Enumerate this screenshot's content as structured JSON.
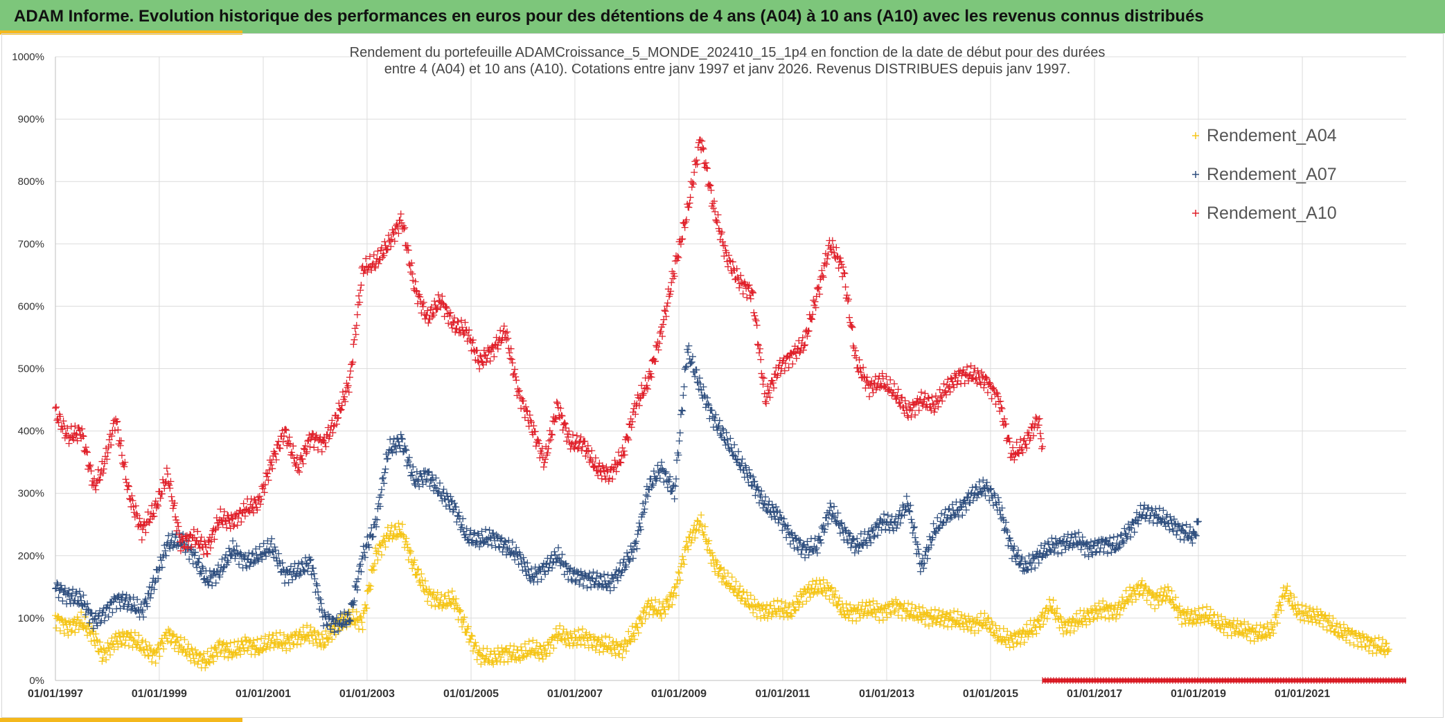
{
  "header": {
    "title": "ADAM Informe. Evolution historique des performances en euros pour des détentions de 4 ans (A04) à 10 ans (A10) avec les revenus connus distribués"
  },
  "colors": {
    "header_bg": "#7dc67b",
    "accent": "#f4b81c",
    "A04": "#f5c518",
    "A07": "#2f4f7f",
    "A10": "#e0202a"
  },
  "chart_data": {
    "type": "scatter",
    "title_lines": [
      "Rendement du portefeuille ADAMCroissance_5_MONDE_202410_15_1p4  en fonction de la date de début pour des durées",
      "entre 4 (A04) et 10 ans (A10). Cotations entre janv 1997 et janv 2026. Revenus DISTRIBUES depuis janv 1997."
    ],
    "x_axis": {
      "type": "date",
      "min": "1997-01-01",
      "max": "2023-01-01"
    },
    "x_ticks": [
      "01/01/1997",
      "01/01/1999",
      "01/01/2001",
      "01/01/2003",
      "01/01/2005",
      "01/01/2007",
      "01/01/2009",
      "01/01/2011",
      "01/01/2013",
      "01/01/2015",
      "01/01/2017",
      "01/01/2019",
      "01/01/2021"
    ],
    "y_axis": {
      "min": 0,
      "max": 1000,
      "unit": "%"
    },
    "y_ticks": [
      "0%",
      "100%",
      "200%",
      "300%",
      "400%",
      "500%",
      "600%",
      "700%",
      "800%",
      "900%",
      "1000%"
    ],
    "grid": true,
    "legend_position": "top-right",
    "marker": "+",
    "series": [
      {
        "name": "Rendement_A04",
        "color": "#f5c518",
        "points": [
          [
            "1997-01-01",
            100
          ],
          [
            "1997-04-01",
            85
          ],
          [
            "1997-07-01",
            95
          ],
          [
            "1997-10-01",
            70
          ],
          [
            "1997-12-01",
            40
          ],
          [
            "1998-03-01",
            65
          ],
          [
            "1998-06-01",
            70
          ],
          [
            "1998-09-01",
            55
          ],
          [
            "1998-12-01",
            40
          ],
          [
            "1999-03-01",
            75
          ],
          [
            "1999-06-01",
            55
          ],
          [
            "1999-09-01",
            40
          ],
          [
            "1999-12-01",
            30
          ],
          [
            "2000-03-01",
            55
          ],
          [
            "2000-06-01",
            45
          ],
          [
            "2000-09-01",
            60
          ],
          [
            "2000-12-01",
            50
          ],
          [
            "2001-03-01",
            65
          ],
          [
            "2001-06-01",
            60
          ],
          [
            "2001-09-01",
            70
          ],
          [
            "2001-12-01",
            75
          ],
          [
            "2002-03-01",
            60
          ],
          [
            "2002-06-01",
            90
          ],
          [
            "2002-09-01",
            100
          ],
          [
            "2002-12-01",
            95
          ],
          [
            "2003-03-01",
            200
          ],
          [
            "2003-06-01",
            235
          ],
          [
            "2003-09-01",
            240
          ],
          [
            "2003-12-01",
            180
          ],
          [
            "2004-03-01",
            140
          ],
          [
            "2004-06-01",
            125
          ],
          [
            "2004-09-01",
            130
          ],
          [
            "2004-12-01",
            80
          ],
          [
            "2005-03-01",
            40
          ],
          [
            "2005-06-01",
            35
          ],
          [
            "2005-09-01",
            45
          ],
          [
            "2005-12-01",
            40
          ],
          [
            "2006-03-01",
            50
          ],
          [
            "2006-06-01",
            45
          ],
          [
            "2006-09-01",
            75
          ],
          [
            "2006-12-01",
            65
          ],
          [
            "2007-03-01",
            70
          ],
          [
            "2007-06-01",
            60
          ],
          [
            "2007-09-01",
            55
          ],
          [
            "2007-12-01",
            50
          ],
          [
            "2008-03-01",
            80
          ],
          [
            "2008-06-01",
            120
          ],
          [
            "2008-09-01",
            110
          ],
          [
            "2008-12-01",
            140
          ],
          [
            "2009-03-01",
            220
          ],
          [
            "2009-06-01",
            255
          ],
          [
            "2009-09-01",
            190
          ],
          [
            "2009-12-01",
            160
          ],
          [
            "2010-03-01",
            140
          ],
          [
            "2010-06-01",
            120
          ],
          [
            "2010-09-01",
            110
          ],
          [
            "2010-12-01",
            115
          ],
          [
            "2011-03-01",
            110
          ],
          [
            "2011-06-01",
            140
          ],
          [
            "2011-09-01",
            150
          ],
          [
            "2011-12-01",
            145
          ],
          [
            "2012-03-01",
            110
          ],
          [
            "2012-06-01",
            110
          ],
          [
            "2012-09-01",
            115
          ],
          [
            "2012-12-01",
            110
          ],
          [
            "2013-03-01",
            120
          ],
          [
            "2013-06-01",
            110
          ],
          [
            "2013-09-01",
            105
          ],
          [
            "2013-12-01",
            100
          ],
          [
            "2014-03-01",
            100
          ],
          [
            "2014-06-01",
            95
          ],
          [
            "2014-09-01",
            90
          ],
          [
            "2014-12-01",
            95
          ],
          [
            "2015-03-01",
            70
          ],
          [
            "2015-06-01",
            65
          ],
          [
            "2015-09-01",
            75
          ],
          [
            "2015-12-01",
            90
          ],
          [
            "2016-03-01",
            120
          ],
          [
            "2016-06-01",
            85
          ],
          [
            "2016-09-01",
            95
          ],
          [
            "2016-12-01",
            105
          ],
          [
            "2017-03-01",
            115
          ],
          [
            "2017-06-01",
            110
          ],
          [
            "2017-09-01",
            135
          ],
          [
            "2017-12-01",
            150
          ],
          [
            "2018-03-01",
            130
          ],
          [
            "2018-06-01",
            140
          ],
          [
            "2018-09-01",
            105
          ],
          [
            "2018-12-01",
            100
          ],
          [
            "2019-03-01",
            105
          ],
          [
            "2019-06-01",
            90
          ],
          [
            "2019-09-01",
            85
          ],
          [
            "2019-12-01",
            80
          ],
          [
            "2020-03-01",
            75
          ],
          [
            "2020-06-01",
            80
          ],
          [
            "2020-09-01",
            145
          ],
          [
            "2020-12-01",
            110
          ],
          [
            "2021-03-01",
            105
          ],
          [
            "2021-06-01",
            100
          ],
          [
            "2021-09-01",
            80
          ],
          [
            "2021-12-01",
            75
          ],
          [
            "2022-03-01",
            65
          ],
          [
            "2022-06-01",
            55
          ],
          [
            "2022-09-01",
            50
          ]
        ]
      },
      {
        "name": "Rendement_A07",
        "color": "#2f4f7f",
        "points": [
          [
            "1997-01-01",
            150
          ],
          [
            "1997-04-01",
            135
          ],
          [
            "1997-07-01",
            130
          ],
          [
            "1997-10-01",
            95
          ],
          [
            "1997-12-01",
            105
          ],
          [
            "1998-03-01",
            130
          ],
          [
            "1998-06-01",
            125
          ],
          [
            "1998-09-01",
            110
          ],
          [
            "1998-12-01",
            160
          ],
          [
            "1999-03-01",
            220
          ],
          [
            "1999-06-01",
            225
          ],
          [
            "1999-09-01",
            200
          ],
          [
            "1999-12-01",
            160
          ],
          [
            "2000-03-01",
            175
          ],
          [
            "2000-06-01",
            210
          ],
          [
            "2000-09-01",
            190
          ],
          [
            "2000-12-01",
            200
          ],
          [
            "2001-03-01",
            215
          ],
          [
            "2001-06-01",
            170
          ],
          [
            "2001-09-01",
            175
          ],
          [
            "2001-12-01",
            190
          ],
          [
            "2002-03-01",
            100
          ],
          [
            "2002-06-01",
            90
          ],
          [
            "2002-09-01",
            100
          ],
          [
            "2002-12-01",
            200
          ],
          [
            "2003-03-01",
            250
          ],
          [
            "2003-06-01",
            370
          ],
          [
            "2003-09-01",
            385
          ],
          [
            "2003-12-01",
            320
          ],
          [
            "2004-03-01",
            330
          ],
          [
            "2004-06-01",
            300
          ],
          [
            "2004-09-01",
            280
          ],
          [
            "2004-12-01",
            230
          ],
          [
            "2005-03-01",
            225
          ],
          [
            "2005-06-01",
            230
          ],
          [
            "2005-09-01",
            215
          ],
          [
            "2005-12-01",
            200
          ],
          [
            "2006-03-01",
            165
          ],
          [
            "2006-06-01",
            180
          ],
          [
            "2006-09-01",
            200
          ],
          [
            "2006-12-01",
            170
          ],
          [
            "2007-03-01",
            165
          ],
          [
            "2007-06-01",
            160
          ],
          [
            "2007-09-01",
            155
          ],
          [
            "2007-12-01",
            180
          ],
          [
            "2008-03-01",
            215
          ],
          [
            "2008-06-01",
            310
          ],
          [
            "2008-09-01",
            340
          ],
          [
            "2008-12-01",
            300
          ],
          [
            "2009-03-01",
            530
          ],
          [
            "2009-06-01",
            470
          ],
          [
            "2009-09-01",
            420
          ],
          [
            "2009-12-01",
            385
          ],
          [
            "2010-03-01",
            350
          ],
          [
            "2010-06-01",
            320
          ],
          [
            "2010-09-01",
            280
          ],
          [
            "2010-12-01",
            265
          ],
          [
            "2011-03-01",
            230
          ],
          [
            "2011-06-01",
            210
          ],
          [
            "2011-09-01",
            215
          ],
          [
            "2011-12-01",
            275
          ],
          [
            "2012-03-01",
            240
          ],
          [
            "2012-06-01",
            215
          ],
          [
            "2012-09-01",
            230
          ],
          [
            "2012-12-01",
            255
          ],
          [
            "2013-03-01",
            250
          ],
          [
            "2013-06-01",
            285
          ],
          [
            "2013-09-01",
            180
          ],
          [
            "2013-12-01",
            240
          ],
          [
            "2014-03-01",
            265
          ],
          [
            "2014-06-01",
            275
          ],
          [
            "2014-09-01",
            300
          ],
          [
            "2014-12-01",
            310
          ],
          [
            "2015-03-01",
            280
          ],
          [
            "2015-06-01",
            210
          ],
          [
            "2015-09-01",
            180
          ],
          [
            "2015-12-01",
            200
          ],
          [
            "2016-03-01",
            215
          ],
          [
            "2016-06-01",
            220
          ],
          [
            "2016-09-01",
            225
          ],
          [
            "2016-12-01",
            210
          ],
          [
            "2017-03-01",
            220
          ],
          [
            "2017-06-01",
            215
          ],
          [
            "2017-09-01",
            240
          ],
          [
            "2017-12-01",
            270
          ],
          [
            "2018-03-01",
            265
          ],
          [
            "2018-06-01",
            255
          ],
          [
            "2018-09-01",
            240
          ],
          [
            "2018-12-01",
            230
          ],
          [
            "2019-01-01",
            255
          ]
        ]
      },
      {
        "name": "Rendement_A10",
        "color": "#e0202a",
        "points": [
          [
            "1997-01-01",
            430
          ],
          [
            "1997-04-01",
            390
          ],
          [
            "1997-07-01",
            400
          ],
          [
            "1997-10-01",
            310
          ],
          [
            "1997-12-01",
            340
          ],
          [
            "1998-03-01",
            420
          ],
          [
            "1998-06-01",
            300
          ],
          [
            "1998-09-01",
            240
          ],
          [
            "1998-12-01",
            275
          ],
          [
            "1999-03-01",
            330
          ],
          [
            "1999-06-01",
            220
          ],
          [
            "1999-09-01",
            230
          ],
          [
            "1999-12-01",
            210
          ],
          [
            "2000-03-01",
            260
          ],
          [
            "2000-06-01",
            255
          ],
          [
            "2000-09-01",
            275
          ],
          [
            "2000-12-01",
            285
          ],
          [
            "2001-03-01",
            350
          ],
          [
            "2001-06-01",
            400
          ],
          [
            "2001-09-01",
            340
          ],
          [
            "2001-12-01",
            390
          ],
          [
            "2002-03-01",
            380
          ],
          [
            "2002-06-01",
            420
          ],
          [
            "2002-09-01",
            480
          ],
          [
            "2002-12-01",
            660
          ],
          [
            "2003-03-01",
            670
          ],
          [
            "2003-06-01",
            700
          ],
          [
            "2003-09-01",
            740
          ],
          [
            "2003-12-01",
            630
          ],
          [
            "2004-03-01",
            580
          ],
          [
            "2004-06-01",
            610
          ],
          [
            "2004-09-01",
            570
          ],
          [
            "2004-12-01",
            560
          ],
          [
            "2005-03-01",
            510
          ],
          [
            "2005-06-01",
            530
          ],
          [
            "2005-09-01",
            560
          ],
          [
            "2005-12-01",
            460
          ],
          [
            "2006-03-01",
            410
          ],
          [
            "2006-06-01",
            350
          ],
          [
            "2006-09-01",
            440
          ],
          [
            "2006-12-01",
            380
          ],
          [
            "2007-03-01",
            380
          ],
          [
            "2007-06-01",
            340
          ],
          [
            "2007-09-01",
            330
          ],
          [
            "2007-12-01",
            360
          ],
          [
            "2008-03-01",
            440
          ],
          [
            "2008-06-01",
            480
          ],
          [
            "2008-09-01",
            560
          ],
          [
            "2008-12-01",
            660
          ],
          [
            "2009-03-01",
            750
          ],
          [
            "2009-06-01",
            870
          ],
          [
            "2009-09-01",
            760
          ],
          [
            "2009-12-01",
            680
          ],
          [
            "2010-03-01",
            640
          ],
          [
            "2010-06-01",
            620
          ],
          [
            "2010-09-01",
            450
          ],
          [
            "2010-12-01",
            500
          ],
          [
            "2011-03-01",
            520
          ],
          [
            "2011-06-01",
            540
          ],
          [
            "2011-09-01",
            620
          ],
          [
            "2011-12-01",
            700
          ],
          [
            "2012-03-01",
            660
          ],
          [
            "2012-06-01",
            510
          ],
          [
            "2012-09-01",
            470
          ],
          [
            "2012-12-01",
            480
          ],
          [
            "2013-03-01",
            460
          ],
          [
            "2013-06-01",
            430
          ],
          [
            "2013-09-01",
            450
          ],
          [
            "2013-12-01",
            440
          ],
          [
            "2014-03-01",
            470
          ],
          [
            "2014-06-01",
            490
          ],
          [
            "2014-09-01",
            490
          ],
          [
            "2014-12-01",
            480
          ],
          [
            "2015-03-01",
            450
          ],
          [
            "2015-06-01",
            360
          ],
          [
            "2015-09-01",
            380
          ],
          [
            "2015-12-01",
            420
          ],
          [
            "2016-01-01",
            375
          ]
        ]
      }
    ]
  }
}
